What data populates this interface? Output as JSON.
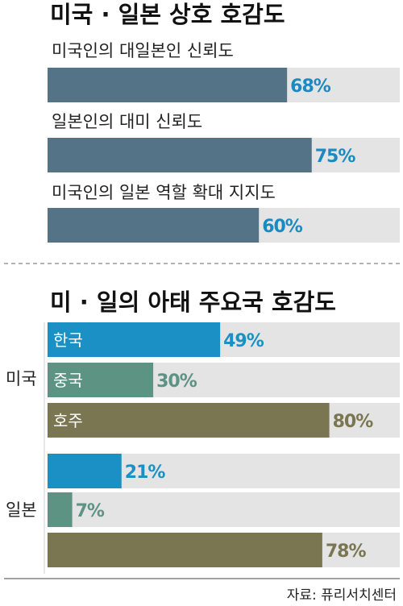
{
  "source": "자료: 퓨리서치센터",
  "chart_data": [
    {
      "type": "bar",
      "title": "미국 · 일본 상호 호감도",
      "orientation": "horizontal",
      "xlim": [
        0,
        100
      ],
      "color": "#547386",
      "bars": [
        {
          "label": "미국인의 대일본인 신뢰도",
          "value": 68,
          "value_label": "68%"
        },
        {
          "label": "일본인의 대미 신뢰도",
          "value": 75,
          "value_label": "75%"
        },
        {
          "label": "미국인의 일본 역할 확대 지지도",
          "value": 60,
          "value_label": "60%"
        }
      ]
    },
    {
      "type": "bar",
      "title": "미 · 일의 아태 주요국 호감도",
      "orientation": "horizontal",
      "xlim": [
        0,
        100
      ],
      "categories": [
        "한국",
        "중국",
        "호주"
      ],
      "series_colors": {
        "한국": "#1a90c4",
        "중국": "#5d9383",
        "호주": "#7a7651"
      },
      "groups": [
        {
          "name": "미국",
          "values": [
            49,
            30,
            80
          ],
          "value_labels": [
            "49%",
            "30%",
            "80%"
          ],
          "show_category_labels": true
        },
        {
          "name": "일본",
          "values": [
            21,
            7,
            78
          ],
          "value_labels": [
            "21%",
            "7%",
            "78%"
          ],
          "show_category_labels": false
        }
      ]
    }
  ]
}
